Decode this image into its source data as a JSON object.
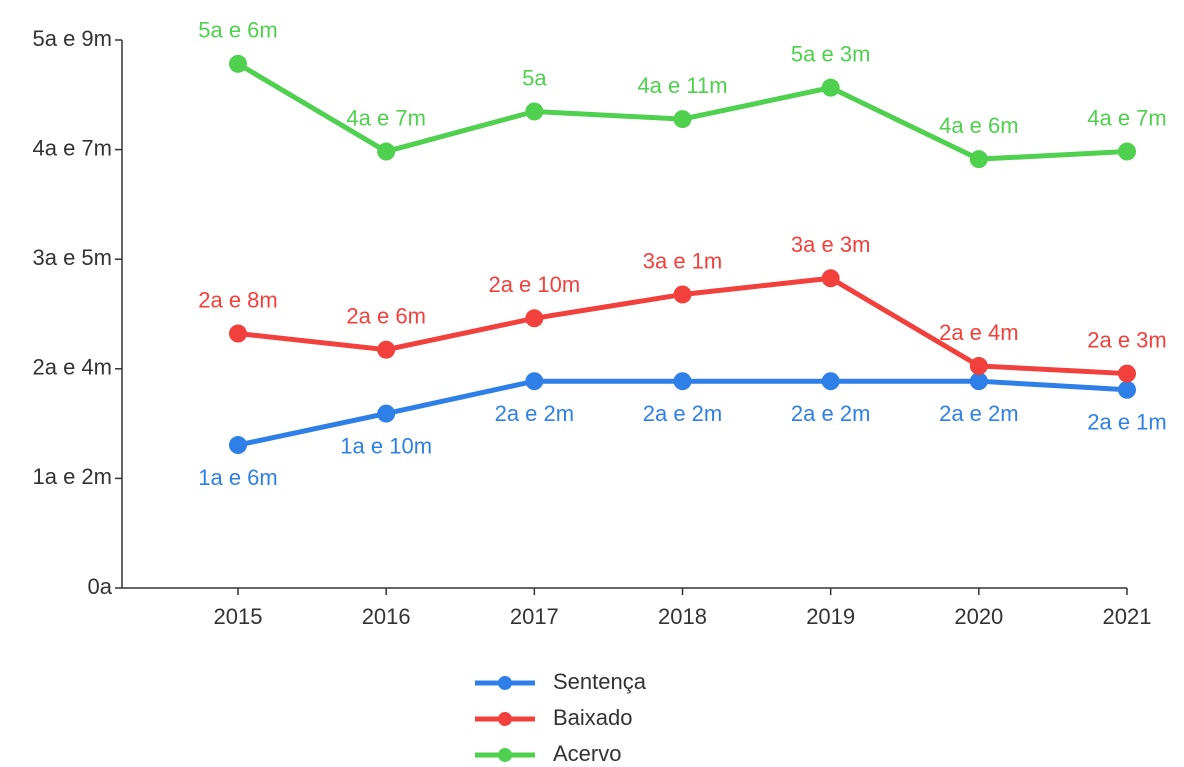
{
  "chart_data": {
    "type": "line",
    "categories": [
      "2015",
      "2016",
      "2017",
      "2018",
      "2019",
      "2020",
      "2021"
    ],
    "series": [
      {
        "name": "Sentença",
        "color": "#2f7fe8",
        "label_position": "below",
        "values": [
          1.5,
          1.83,
          2.17,
          2.17,
          2.17,
          2.17,
          2.08
        ],
        "value_labels": [
          "1a e 6m",
          "1a e 10m",
          "2a e 2m",
          "2a e 2m",
          "2a e 2m",
          "2a e 2m",
          "2a e 1m"
        ]
      },
      {
        "name": "Baixado",
        "color": "#f2403c",
        "label_position": "above",
        "values": [
          2.67,
          2.5,
          2.83,
          3.08,
          3.25,
          2.33,
          2.25
        ],
        "value_labels": [
          "2a e 8m",
          "2a e 6m",
          "2a e 10m",
          "3a e 1m",
          "3a e 3m",
          "2a e 4m",
          "2a e 3m"
        ]
      },
      {
        "name": "Acervo",
        "color": "#4fd04f",
        "label_position": "above",
        "values": [
          5.5,
          4.58,
          5,
          4.92,
          5.25,
          4.5,
          4.58
        ],
        "value_labels": [
          "5a e 6m",
          "4a e 7m",
          "5a",
          "4a e 11m",
          "5a e 3m",
          "4a e 6m",
          "4a e 7m"
        ]
      }
    ],
    "ylim": [
      0,
      5.75
    ],
    "yticks": [
      {
        "value": 0,
        "label": "0a"
      },
      {
        "value": 1.15,
        "label": "1a e 2m"
      },
      {
        "value": 2.3,
        "label": "2a e 4m"
      },
      {
        "value": 3.45,
        "label": "3a e 5m"
      },
      {
        "value": 4.6,
        "label": "4a e 7m"
      },
      {
        "value": 5.75,
        "label": "5a e 9m"
      }
    ],
    "grid": false,
    "legend": "bottom"
  }
}
